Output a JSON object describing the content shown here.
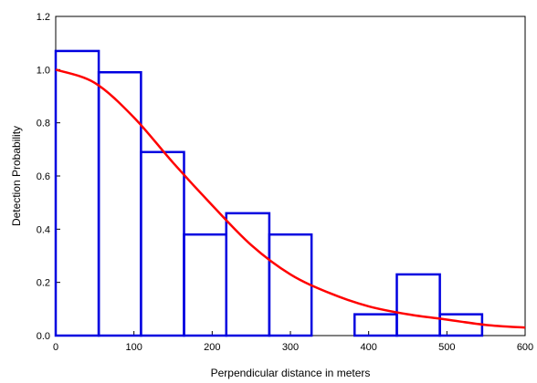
{
  "chart_data": {
    "type": "bar",
    "title": "",
    "xlabel": "Perpendicular distance in meters",
    "ylabel": "Detection Probability",
    "xlim": [
      0,
      600
    ],
    "ylim": [
      0,
      1.2
    ],
    "x_ticks": [
      "0",
      "100",
      "200",
      "300",
      "400",
      "500",
      "600"
    ],
    "y_ticks": [
      "0.0",
      "0.2",
      "0.4",
      "0.6",
      "0.8",
      "1.0",
      "1.2"
    ],
    "grid": false,
    "legend": "none",
    "bins": [
      {
        "x0": 0,
        "x1": 55,
        "value": 1.07
      },
      {
        "x0": 55,
        "x1": 109,
        "value": 0.99
      },
      {
        "x0": 109,
        "x1": 164,
        "value": 0.69
      },
      {
        "x0": 164,
        "x1": 218,
        "value": 0.38
      },
      {
        "x0": 218,
        "x1": 273,
        "value": 0.46
      },
      {
        "x0": 273,
        "x1": 327,
        "value": 0.38
      },
      {
        "x0": 327,
        "x1": 382,
        "value": 0.0
      },
      {
        "x0": 382,
        "x1": 436,
        "value": 0.08
      },
      {
        "x0": 436,
        "x1": 491,
        "value": 0.23
      },
      {
        "x0": 491,
        "x1": 545,
        "value": 0.08
      },
      {
        "x0": 545,
        "x1": 600,
        "value": 0.0
      }
    ],
    "curve": {
      "type": "line",
      "x": [
        0,
        50,
        100,
        150,
        200,
        250,
        300,
        350,
        400,
        450,
        500,
        550,
        600
      ],
      "y": [
        1.0,
        0.95,
        0.82,
        0.65,
        0.49,
        0.34,
        0.23,
        0.16,
        0.11,
        0.08,
        0.06,
        0.04,
        0.03
      ]
    },
    "colors": {
      "bars": "#0000e0",
      "curve": "#ff0000",
      "axis": "#000000"
    }
  }
}
